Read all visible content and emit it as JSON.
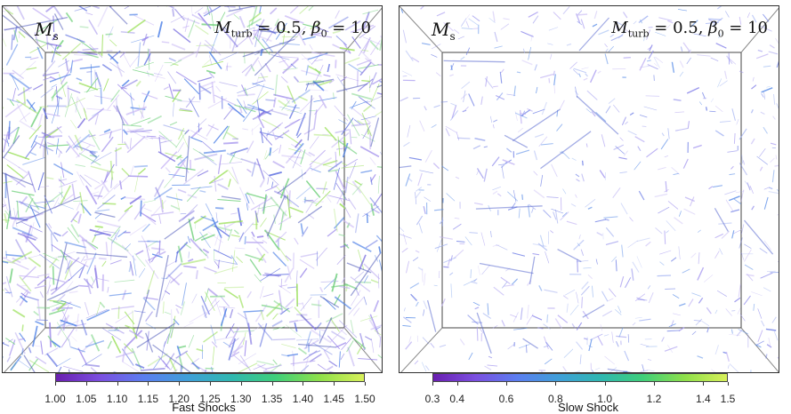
{
  "panels": [
    {
      "corner_label": {
        "main": "M",
        "sub": "s"
      },
      "param_label": {
        "m": "M",
        "m_sub": "turb",
        "eq1": " = 0.5, ",
        "beta": "β",
        "beta_sub": "0",
        "eq2": " = 10"
      },
      "colorbar": {
        "title": "Fast Shocks",
        "ticks": [
          "1.00",
          "1.05",
          "1.10",
          "1.15",
          "1.20",
          "1.25",
          "1.30",
          "1.35",
          "1.40",
          "1.45",
          "1.50"
        ],
        "tick_values": [
          1.0,
          1.05,
          1.1,
          1.15,
          1.2,
          1.25,
          1.3,
          1.35,
          1.4,
          1.45,
          1.5
        ],
        "range": [
          1.0,
          1.5
        ]
      },
      "density": "high"
    },
    {
      "corner_label": {
        "main": "M",
        "sub": "s"
      },
      "param_label": {
        "m": "M",
        "m_sub": "turb",
        "eq1": " = 0.5, ",
        "beta": "β",
        "beta_sub": "0",
        "eq2": " = 10"
      },
      "colorbar": {
        "title": "Slow Shock",
        "ticks": [
          "0.3",
          "0.4",
          "0.6",
          "0.8",
          "1.0",
          "1.2",
          "1.4",
          "1.5"
        ],
        "tick_values": [
          0.3,
          0.4,
          0.6,
          0.8,
          1.0,
          1.2,
          1.4,
          1.5
        ],
        "range": [
          0.3,
          1.5
        ]
      },
      "density": "low"
    }
  ],
  "colormap": [
    "#6a1fb0",
    "#7b4fe0",
    "#5b7ef0",
    "#3f9fd8",
    "#2fb8b0",
    "#3fcf7a",
    "#8fe04a",
    "#d8f05a"
  ]
}
